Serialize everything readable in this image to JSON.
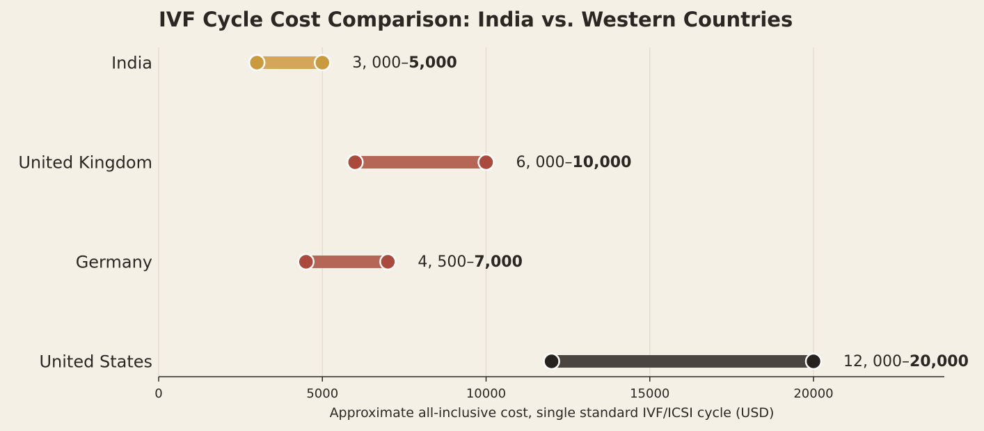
{
  "chart_data": {
    "type": "range",
    "title": "IVF Cycle Cost Comparison: India vs. Western Countries",
    "xlabel": "Approximate all-inclusive cost, single standard IVF/ICSI cycle (USD)",
    "ylabel": "",
    "xlim": [
      0,
      24000
    ],
    "xticks": [
      0,
      5000,
      10000,
      15000,
      20000
    ],
    "xtick_labels": [
      "0",
      "5000",
      "10000",
      "15000",
      "20000"
    ],
    "grid": "vertical",
    "categories": [
      "India",
      "United Kingdom",
      "Germany",
      "United States"
    ],
    "series": [
      {
        "category": "India",
        "low": 3000,
        "high": 5000,
        "label_low": "3, 000–",
        "label_high": "5,000",
        "color": "#c99a3e",
        "bar_color": "#d4a55a"
      },
      {
        "category": "United Kingdom",
        "low": 6000,
        "high": 10000,
        "label_low": "6, 000–",
        "label_high": "10,000",
        "color": "#a94a3c",
        "bar_color": "#b56656"
      },
      {
        "category": "Germany",
        "low": 4500,
        "high": 7000,
        "label_low": "4, 500–",
        "label_high": "7,000",
        "color": "#a94a3c",
        "bar_color": "#b56656"
      },
      {
        "category": "United States",
        "low": 12000,
        "high": 20000,
        "label_low": "12, 000–",
        "label_high": "20,000",
        "color": "#252220",
        "bar_color": "#4a4540"
      }
    ]
  }
}
